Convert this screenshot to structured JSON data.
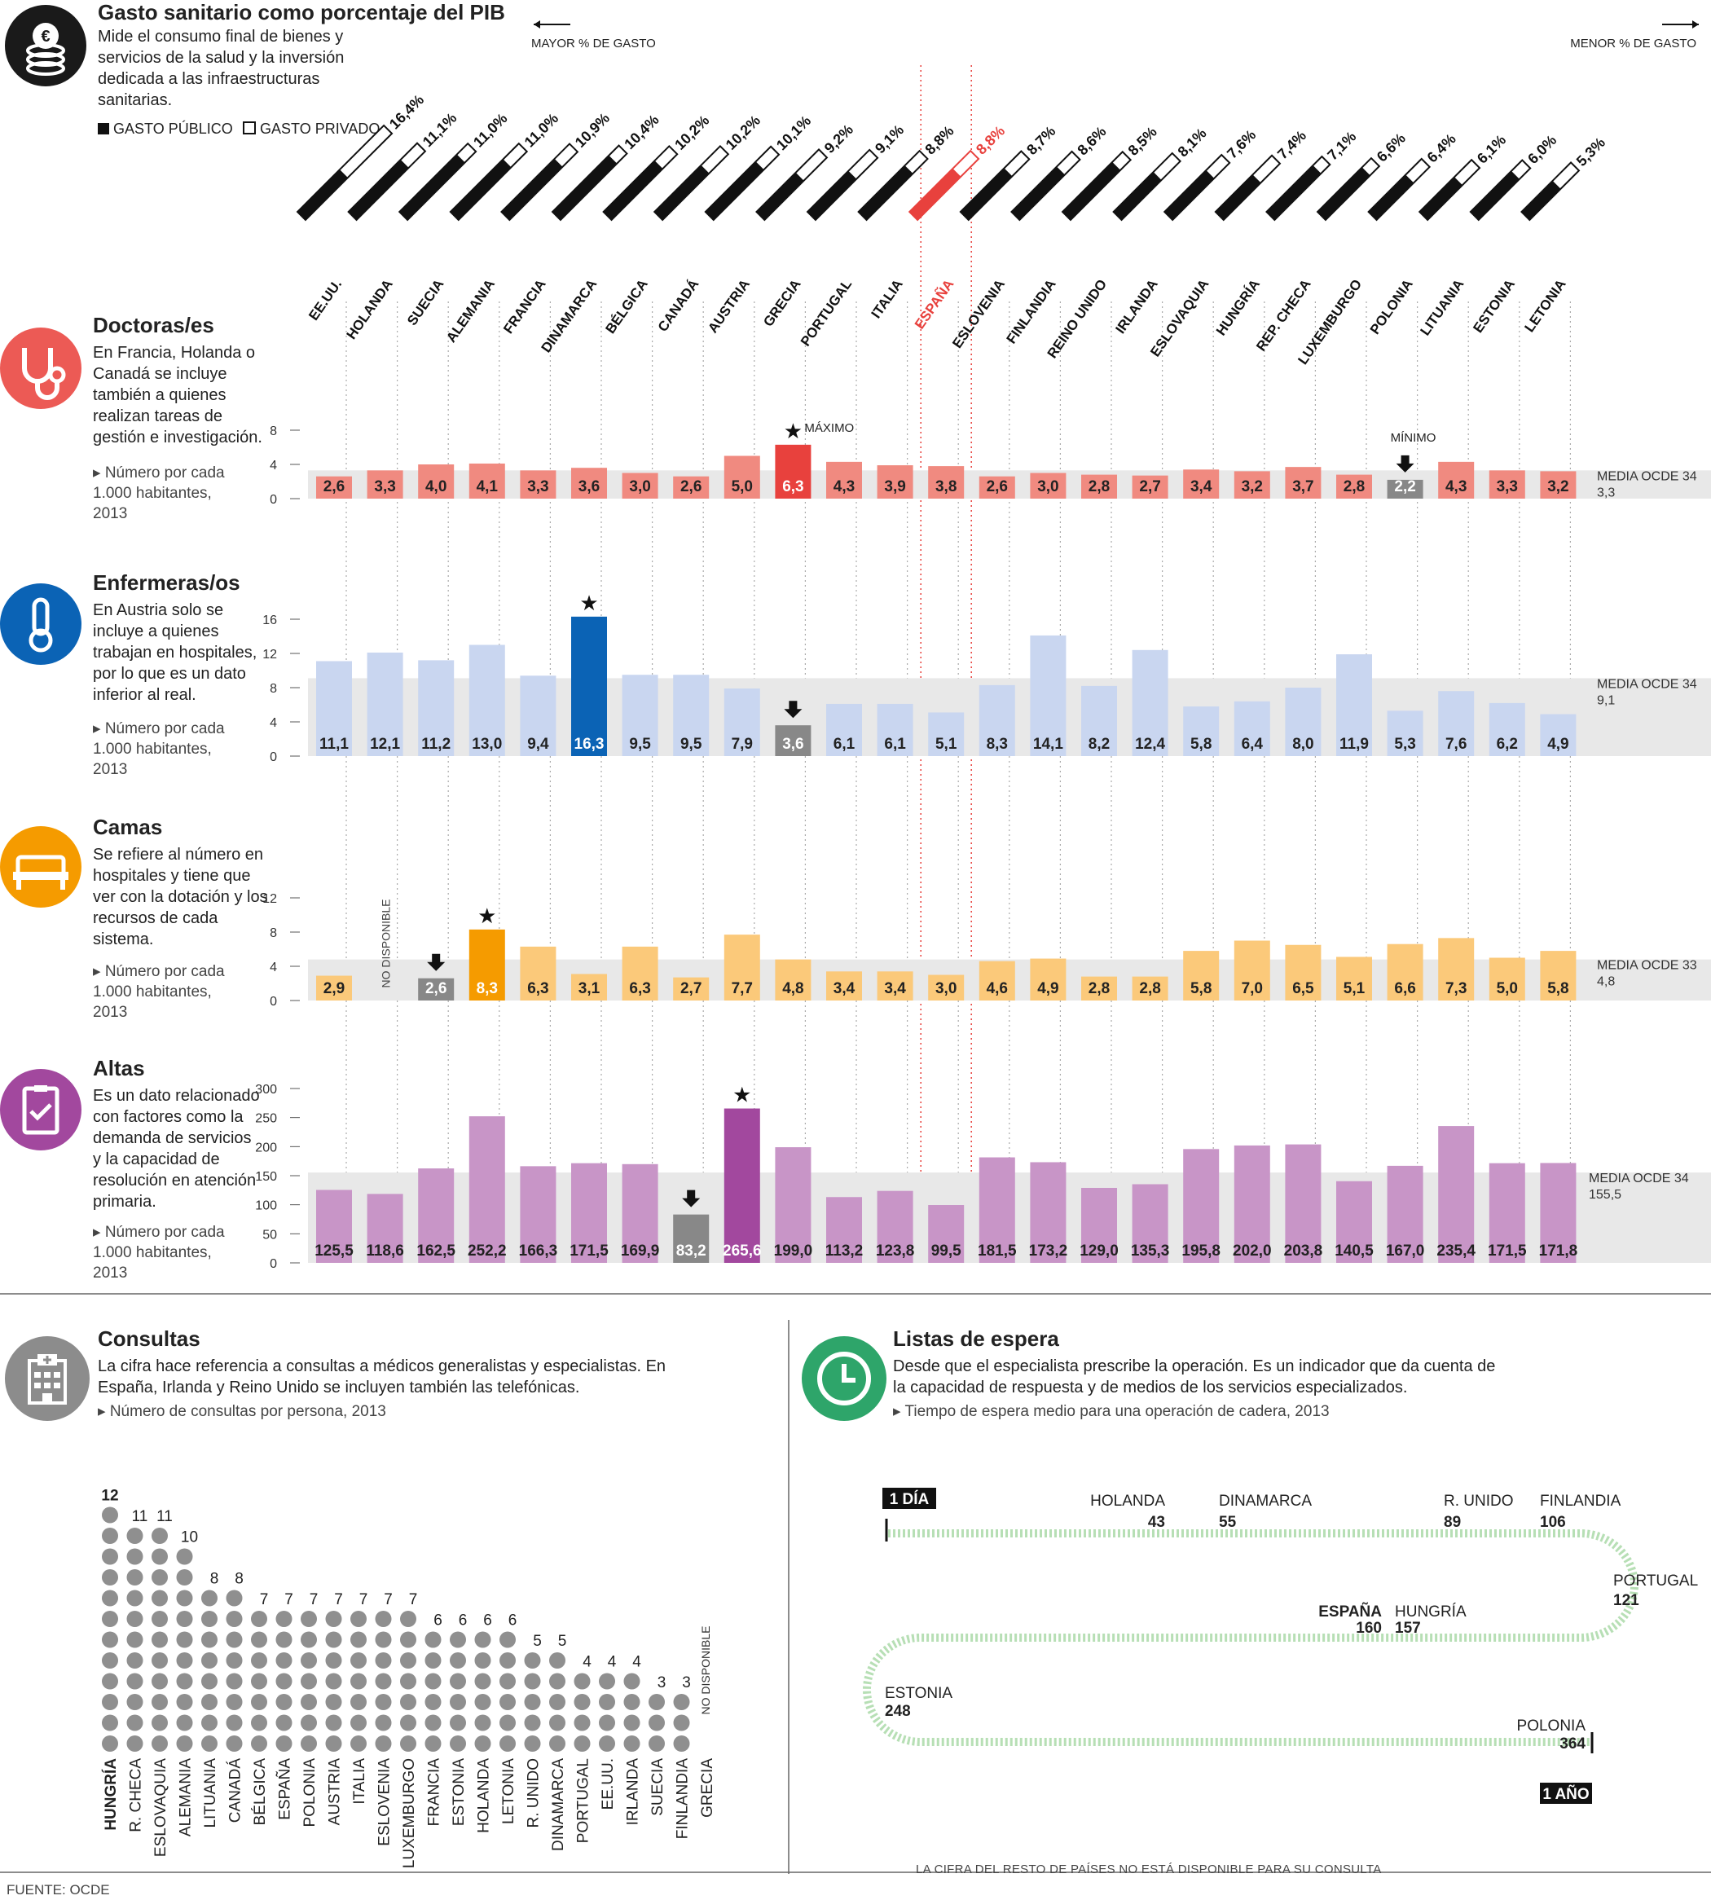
{
  "header": {
    "title": "Gasto sanitario como porcentaje del PIB",
    "description": "Mide el consumo final de bienes y servicios de la salud y la inversión dedicada a las infraestructuras sanitarias.",
    "legend_public": "GASTO PÚBLICO",
    "legend_private": "GASTO PRIVADO",
    "more_label": "MAYOR % DE GASTO",
    "less_label": "MENOR % DE GASTO"
  },
  "countries": [
    "EE.UU.",
    "HOLANDA",
    "SUECIA",
    "ALEMANIA",
    "FRANCIA",
    "DINAMARCA",
    "BÉLGICA",
    "CANADÁ",
    "AUSTRIA",
    "GRECIA",
    "PORTUGAL",
    "ITALIA",
    "ESPAÑA",
    "ESLOVENIA",
    "FINLANDIA",
    "REINO UNIDO",
    "IRLANDA",
    "ESLOVAQUIA",
    "HUNGRÍA",
    "REP. CHECA",
    "LUXEMBURGO",
    "POLONIA",
    "LITUANIA",
    "ESTONIA",
    "LETONIA"
  ],
  "gdp_labels": [
    "16,4%",
    "11,1%",
    "11,0%",
    "11,0%",
    "10,9%",
    "10,4%",
    "10,2%",
    "10,2%",
    "10,1%",
    "9,2%",
    "9,1%",
    "8,8%",
    "8,8%",
    "8,7%",
    "8,6%",
    "8,5%",
    "8,1%",
    "7,6%",
    "7,4%",
    "7,1%",
    "6,6%",
    "6,4%",
    "6,1%",
    "6,0%",
    "5,3%"
  ],
  "colors": {
    "doctors": "#f08a80",
    "nurses": "#c9d6f0",
    "beds": "#fbc97a",
    "discharges": "#c895c7",
    "spain": "#e8413d",
    "gray": "#888888",
    "highlight_doctors": "#e8413d",
    "highlight_nurses": "#0b63b5",
    "highlight_beds": "#f59b00",
    "highlight_discharges": "#a2489e",
    "wait": "#b7dfb5"
  },
  "chart_data": [
    {
      "type": "bar",
      "title": "Gasto sanitario como porcentaje del PIB",
      "categories": [
        "EE.UU.",
        "HOLANDA",
        "SUECIA",
        "ALEMANIA",
        "FRANCIA",
        "DINAMARCA",
        "BÉLGICA",
        "CANADÁ",
        "AUSTRIA",
        "GRECIA",
        "PORTUGAL",
        "ITALIA",
        "ESPAÑA",
        "ESLOVENIA",
        "FINLANDIA",
        "REINO UNIDO",
        "IRLANDA",
        "ESLOVAQUIA",
        "HUNGRÍA",
        "REP. CHECA",
        "LUXEMBURGO",
        "POLONIA",
        "LITUANIA",
        "ESTONIA",
        "LETONIA"
      ],
      "values": [
        16.4,
        11.1,
        11.0,
        11.0,
        10.9,
        10.4,
        10.2,
        10.2,
        10.1,
        9.2,
        9.1,
        8.8,
        8.8,
        8.7,
        8.6,
        8.5,
        8.1,
        7.6,
        7.4,
        7.1,
        6.6,
        6.4,
        6.1,
        6.0,
        5.3
      ],
      "public_share": [
        0.49,
        0.76,
        0.84,
        0.77,
        0.78,
        0.85,
        0.78,
        0.71,
        0.77,
        0.63,
        0.66,
        0.76,
        0.71,
        0.72,
        0.75,
        0.83,
        0.68,
        0.73,
        0.66,
        0.84,
        0.83,
        0.7,
        0.67,
        0.79,
        0.63
      ]
    },
    {
      "type": "bar",
      "key": "doctors",
      "title": "Doctoras/es",
      "description": "En Francia, Holanda o Canadá se incluye también a quienes realizan tareas de gestión e investigación.",
      "unit": "Número por cada 1.000 habitantes, 2013",
      "ticks": [
        "8",
        "4",
        "0"
      ],
      "ylim": [
        0,
        8
      ],
      "labels": [
        "2,6",
        "3,3",
        "4,0",
        "4,1",
        "3,3",
        "3,6",
        "3,0",
        "2,6",
        "5,0",
        "6,3",
        "4,3",
        "3,9",
        "3,8",
        "2,6",
        "3,0",
        "2,8",
        "2,7",
        "3,4",
        "3,2",
        "3,7",
        "2,8",
        "2,2",
        "4,3",
        "3,3",
        "3,2"
      ],
      "values": [
        2.6,
        3.3,
        4.0,
        4.1,
        3.3,
        3.6,
        3.0,
        2.6,
        5.0,
        6.3,
        4.3,
        3.9,
        3.8,
        2.6,
        3.0,
        2.8,
        2.7,
        3.4,
        3.2,
        3.7,
        2.8,
        2.2,
        4.3,
        3.3,
        3.2
      ],
      "max_index": 9,
      "min_index": 21,
      "max_label": "MÁXIMO",
      "min_label": "MÍNIMO",
      "mean_label": "MEDIA OCDE 34",
      "mean_value": "3,3",
      "mean": 3.3
    },
    {
      "type": "bar",
      "key": "nurses",
      "title": "Enfermeras/os",
      "description": "En Austria solo se incluye a quienes trabajan en hospitales, por lo que es un dato inferior al real.",
      "unit": "Número por cada 1.000 habitantes, 2013",
      "ticks": [
        "16",
        "12",
        "8",
        "4",
        "0"
      ],
      "ylim": [
        0,
        16
      ],
      "labels": [
        "11,1",
        "12,1",
        "11,2",
        "13,0",
        "9,4",
        "16,3",
        "9,5",
        "9,5",
        "7,9",
        "3,6",
        "6,1",
        "6,1",
        "5,1",
        "8,3",
        "14,1",
        "8,2",
        "12,4",
        "5,8",
        "6,4",
        "8,0",
        "11,9",
        "5,3",
        "7,6",
        "6,2",
        "4,9"
      ],
      "values": [
        11.1,
        12.1,
        11.2,
        13.0,
        9.4,
        16.3,
        9.5,
        9.5,
        7.9,
        3.6,
        6.1,
        6.1,
        5.1,
        8.3,
        14.1,
        8.2,
        12.4,
        5.8,
        6.4,
        8.0,
        11.9,
        5.3,
        7.6,
        6.2,
        4.9
      ],
      "max_index": 5,
      "min_index": 9,
      "mean_label": "MEDIA OCDE 34",
      "mean_value": "9,1",
      "mean": 9.1
    },
    {
      "type": "bar",
      "key": "beds",
      "title": "Camas",
      "description": "Se refiere al número en hospitales y tiene que ver con la dotación y los recursos de cada sistema.",
      "unit": "Número por cada 1.000 habitantes, 2013",
      "ticks": [
        "12",
        "8",
        "4",
        "0"
      ],
      "ylim": [
        0,
        12
      ],
      "na_label": "NO DISPONIBLE",
      "labels": [
        "2,9",
        "",
        "2,6",
        "8,3",
        "6,3",
        "3,1",
        "6,3",
        "2,7",
        "7,7",
        "4,8",
        "3,4",
        "3,4",
        "3,0",
        "4,6",
        "4,9",
        "2,8",
        "2,8",
        "5,8",
        "7,0",
        "6,5",
        "5,1",
        "6,6",
        "7,3",
        "5,0",
        "5,8"
      ],
      "values": [
        2.9,
        null,
        2.6,
        8.3,
        6.3,
        3.1,
        6.3,
        2.7,
        7.7,
        4.8,
        3.4,
        3.4,
        3.0,
        4.6,
        4.9,
        2.8,
        2.8,
        5.8,
        7.0,
        6.5,
        5.1,
        6.6,
        7.3,
        5.0,
        5.8
      ],
      "max_index": 3,
      "min_index": 2,
      "mean_label": "MEDIA OCDE 33",
      "mean_value": "4,8",
      "mean": 4.8
    },
    {
      "type": "bar",
      "key": "discharges",
      "title": "Altas",
      "description": "Es un dato relacionado con factores como la demanda de servicios y la capacidad de resolución en atención primaria.",
      "unit": "Número por cada 1.000 habitantes, 2013",
      "ticks": [
        "300",
        "250",
        "200",
        "150",
        "100",
        "50",
        "0"
      ],
      "ylim": [
        0,
        300
      ],
      "labels": [
        "125,5",
        "118,6",
        "162,5",
        "252,2",
        "166,3",
        "171,5",
        "169,9",
        "83,2",
        "265,6",
        "199,0",
        "113,2",
        "123,8",
        "99,5",
        "181,5",
        "173,2",
        "129,0",
        "135,3",
        "195,8",
        "202,0",
        "203,8",
        "140,5",
        "167,0",
        "235,4",
        "171,5",
        "171,8"
      ],
      "values": [
        125.5,
        118.6,
        162.5,
        252.2,
        166.3,
        171.5,
        169.9,
        83.2,
        265.6,
        199.0,
        113.2,
        123.8,
        99.5,
        181.5,
        173.2,
        129.0,
        135.3,
        195.8,
        202.0,
        203.8,
        140.5,
        167.0,
        235.4,
        171.5,
        171.8
      ],
      "max_index": 8,
      "min_index": 7,
      "mean_label": "MEDIA OCDE 34",
      "mean_value": "155,5",
      "mean": 155.5
    },
    {
      "type": "scatter",
      "key": "consultas",
      "title": "Consultas",
      "description": "La cifra hace referencia a consultas a médicos generalistas y especialistas. En España, Irlanda y Reino Unido se incluyen también las telefónicas.",
      "unit": "Número de consultas por persona, 2013",
      "categories": [
        "HUNGRÍA",
        "R. CHECA",
        "ESLOVAQUIA",
        "ALEMANIA",
        "LITUANIA",
        "CANADÁ",
        "BÉLGICA",
        "ESPAÑA",
        "POLONIA",
        "AUSTRIA",
        "ITALIA",
        "ESLOVENIA",
        "LUXEMBURGO",
        "FRANCIA",
        "ESTONIA",
        "HOLANDA",
        "LETONIA",
        "R. UNIDO",
        "DINAMARCA",
        "PORTUGAL",
        "EE.UU.",
        "IRLANDA",
        "SUECIA",
        "FINLANDIA",
        "GRECIA"
      ],
      "values": [
        12,
        11,
        11,
        10,
        8,
        8,
        7,
        7,
        7,
        7,
        7,
        7,
        7,
        6,
        6,
        6,
        6,
        5,
        5,
        4,
        4,
        4,
        3,
        3,
        null
      ],
      "labels": [
        "12",
        "11",
        "11",
        "10",
        "8",
        "8",
        "7",
        "7",
        "7",
        "7",
        "7",
        "7",
        "7",
        "6",
        "6",
        "6",
        "6",
        "5",
        "5",
        "4",
        "4",
        "4",
        "3",
        "3",
        ""
      ],
      "na_label": "NO DISPONIBLE"
    },
    {
      "type": "line",
      "key": "wait",
      "title": "Listas de espera",
      "description": "Desde que el especialista prescribe la operación. Es un indicador que da cuenta de la capacidad de respuesta y de medios de los servicios especializados.",
      "unit": "Tiempo de espera medio para una operación de cadera, 2013",
      "start_label": "1 DÍA",
      "end_label": "1 AÑO",
      "note": "LA CIFRA DEL RESTO DE PAÍSES NO ESTÁ DISPONIBLE PARA SU CONSULTA",
      "points": [
        {
          "name": "HOLANDA",
          "days": 43
        },
        {
          "name": "DINAMARCA",
          "days": 55
        },
        {
          "name": "R. UNIDO",
          "days": 89
        },
        {
          "name": "FINLANDIA",
          "days": 106
        },
        {
          "name": "PORTUGAL",
          "days": 121
        },
        {
          "name": "HUNGRÍA",
          "days": 157
        },
        {
          "name": "ESPAÑA",
          "days": 160
        },
        {
          "name": "ESTONIA",
          "days": 248
        },
        {
          "name": "POLONIA",
          "days": 364
        }
      ],
      "point_labels": [
        "43",
        "55",
        "89",
        "106",
        "121",
        "157",
        "160",
        "248",
        "364"
      ]
    }
  ],
  "source": "FUENTE: OCDE"
}
